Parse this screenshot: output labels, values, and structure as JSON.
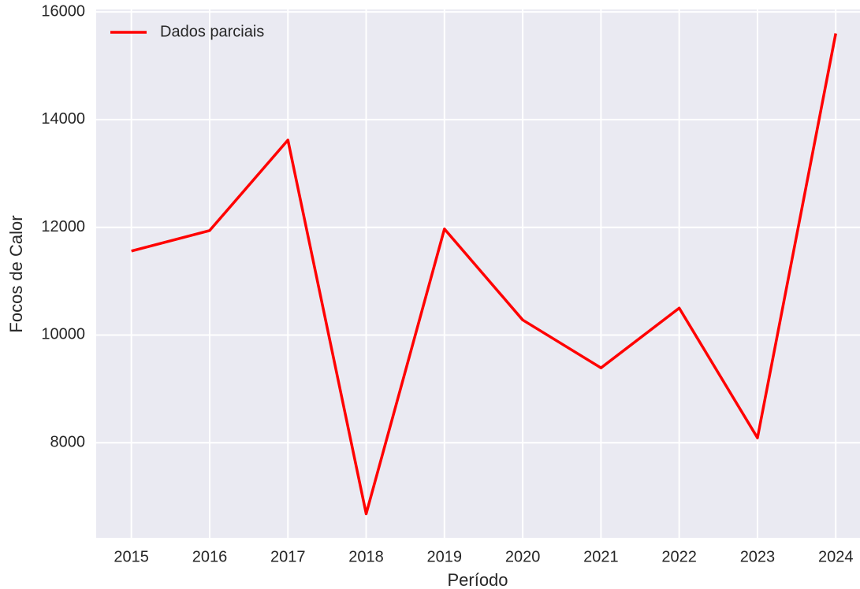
{
  "chart_data": {
    "type": "line",
    "xlabel": "Período",
    "ylabel": "Focos de Calor",
    "x": [
      2015,
      2016,
      2017,
      2018,
      2019,
      2020,
      2021,
      2022,
      2023,
      2024
    ],
    "series": [
      {
        "name": "Dados parciais",
        "color": "#ff0000",
        "values": [
          11560,
          11940,
          13620,
          6680,
          11970,
          10280,
          9390,
          10500,
          8090,
          15600
        ]
      }
    ],
    "xlim": [
      2014.55,
      2024.31
    ],
    "xticks": [
      2015,
      2016,
      2017,
      2018,
      2019,
      2020,
      2021,
      2022,
      2023,
      2024
    ],
    "ylim": [
      6234,
      16046
    ],
    "yticks": [
      8000,
      10000,
      12000,
      14000,
      16000
    ],
    "grid": true,
    "legend": "upper left"
  }
}
